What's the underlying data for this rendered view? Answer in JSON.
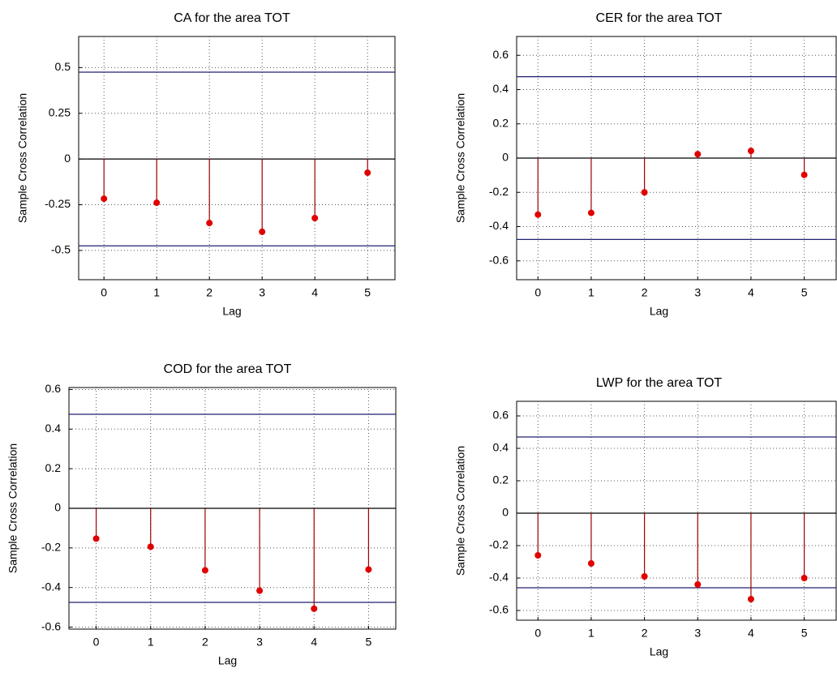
{
  "chart_data": [
    {
      "type": "stem",
      "title": "CA for the area TOT",
      "xlabel": "Lag",
      "ylabel": "Sample Cross Correlation",
      "x": [
        0,
        1,
        2,
        3,
        4,
        5
      ],
      "values": [
        -0.217,
        -0.239,
        -0.35,
        -0.398,
        -0.323,
        -0.075
      ],
      "color": "#e00000",
      "stem_color": "#a00000",
      "bounds": [
        0.475,
        -0.475
      ],
      "bound_color": "#202070",
      "xlim": [
        -0.48,
        5.52
      ],
      "xticks": [
        0,
        1,
        2,
        3,
        4,
        5
      ],
      "ylim": [
        -0.66,
        0.67
      ],
      "yticks": [
        -0.5,
        -0.25,
        0,
        0.25,
        0.5
      ],
      "grid": true
    },
    {
      "type": "stem",
      "title": "CER for the area TOT",
      "xlabel": "Lag",
      "ylabel": "Sample Cross Correlation",
      "x": [
        0,
        1,
        2,
        3,
        4,
        5
      ],
      "values": [
        -0.33,
        -0.32,
        -0.2,
        0.023,
        0.042,
        -0.098
      ],
      "color": "#e00000",
      "stem_color": "#a00000",
      "bounds": [
        0.475,
        -0.475
      ],
      "bound_color": "#202070",
      "xlim": [
        -0.4,
        5.6
      ],
      "xticks": [
        0,
        1,
        2,
        3,
        4,
        5
      ],
      "ylim": [
        -0.71,
        0.71
      ],
      "yticks": [
        -0.6,
        -0.4,
        -0.2,
        0,
        0.2,
        0.4,
        0.6
      ],
      "grid": true
    },
    {
      "type": "stem",
      "title": "COD for the area TOT",
      "xlabel": "Lag",
      "ylabel": "Sample Cross Correlation",
      "x": [
        0,
        1,
        2,
        3,
        4,
        5
      ],
      "values": [
        -0.153,
        -0.194,
        -0.313,
        -0.416,
        -0.507,
        -0.309
      ],
      "color": "#e00000",
      "stem_color": "#a00000",
      "bounds": [
        0.475,
        -0.475
      ],
      "bound_color": "#202070",
      "xlim": [
        -0.5,
        5.5
      ],
      "xticks": [
        0,
        1,
        2,
        3,
        4,
        5
      ],
      "ylim": [
        -0.61,
        0.61
      ],
      "yticks": [
        -0.6,
        -0.4,
        -0.2,
        0,
        0.2,
        0.4,
        0.6
      ],
      "grid": true
    },
    {
      "type": "stem",
      "title": "LWP for the area TOT",
      "xlabel": "Lag",
      "ylabel": "Sample Cross Correlation",
      "x": [
        0,
        1,
        2,
        3,
        4,
        5
      ],
      "values": [
        -0.26,
        -0.31,
        -0.39,
        -0.44,
        -0.53,
        -0.4
      ],
      "color": "#e00000",
      "stem_color": "#a00000",
      "bounds": [
        0.47,
        -0.46
      ],
      "bound_color": "#202070",
      "xlim": [
        -0.4,
        5.6
      ],
      "xticks": [
        0,
        1,
        2,
        3,
        4,
        5
      ],
      "ylim": [
        -0.66,
        0.69
      ],
      "yticks": [
        -0.6,
        -0.4,
        -0.2,
        0,
        0.2,
        0.4,
        0.6
      ],
      "grid": true
    }
  ]
}
